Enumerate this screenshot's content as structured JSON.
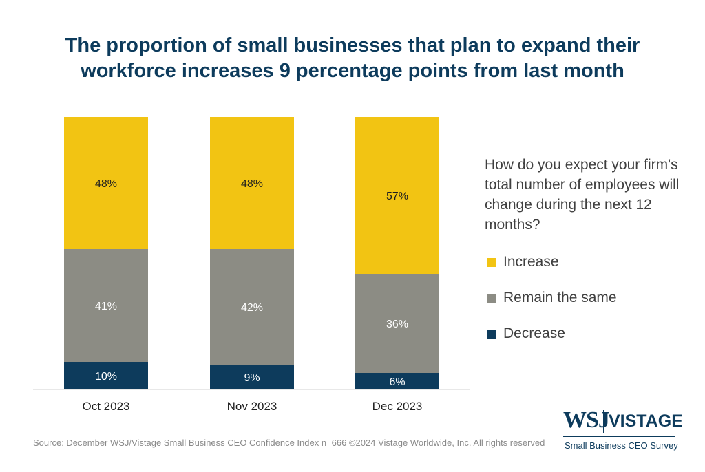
{
  "title": "The proportion of small businesses that plan to expand their workforce increases 9 percentage points from last month",
  "legend_question": "How do you expect your firm's total number of employees will change during the next 12 months?",
  "legend": [
    {
      "label": "Increase",
      "color": "#f2c413"
    },
    {
      "label": "Remain the same",
      "color": "#8c8c84"
    },
    {
      "label": "Decrease",
      "color": "#0d3b5c"
    }
  ],
  "source": "Source: December WSJ/Vistage Small Business CEO Confidence Index n=666 ©2024 Vistage Worldwide, Inc. All rights reserved",
  "logo": {
    "wsj": "WSJ",
    "vistage": "VISTAGE",
    "subtitle": "Small Business CEO Survey"
  },
  "chart_data": {
    "type": "bar",
    "stacked": true,
    "categories": [
      "Oct 2023",
      "Nov 2023",
      "Dec 2023"
    ],
    "series": [
      {
        "name": "Decrease",
        "values": [
          10,
          9,
          6
        ],
        "labels": [
          "10%",
          "9%",
          "6%"
        ],
        "color": "#0d3b5c"
      },
      {
        "name": "Remain the same",
        "values": [
          41,
          42,
          36
        ],
        "labels": [
          "41%",
          "42%",
          "36%"
        ],
        "color": "#8c8c84"
      },
      {
        "name": "Increase",
        "values": [
          48,
          48,
          57
        ],
        "labels": [
          "48%",
          "48%",
          "57%"
        ],
        "color": "#f2c413"
      }
    ],
    "ylim": [
      0,
      100
    ],
    "grid": false,
    "legend_position": "right"
  }
}
